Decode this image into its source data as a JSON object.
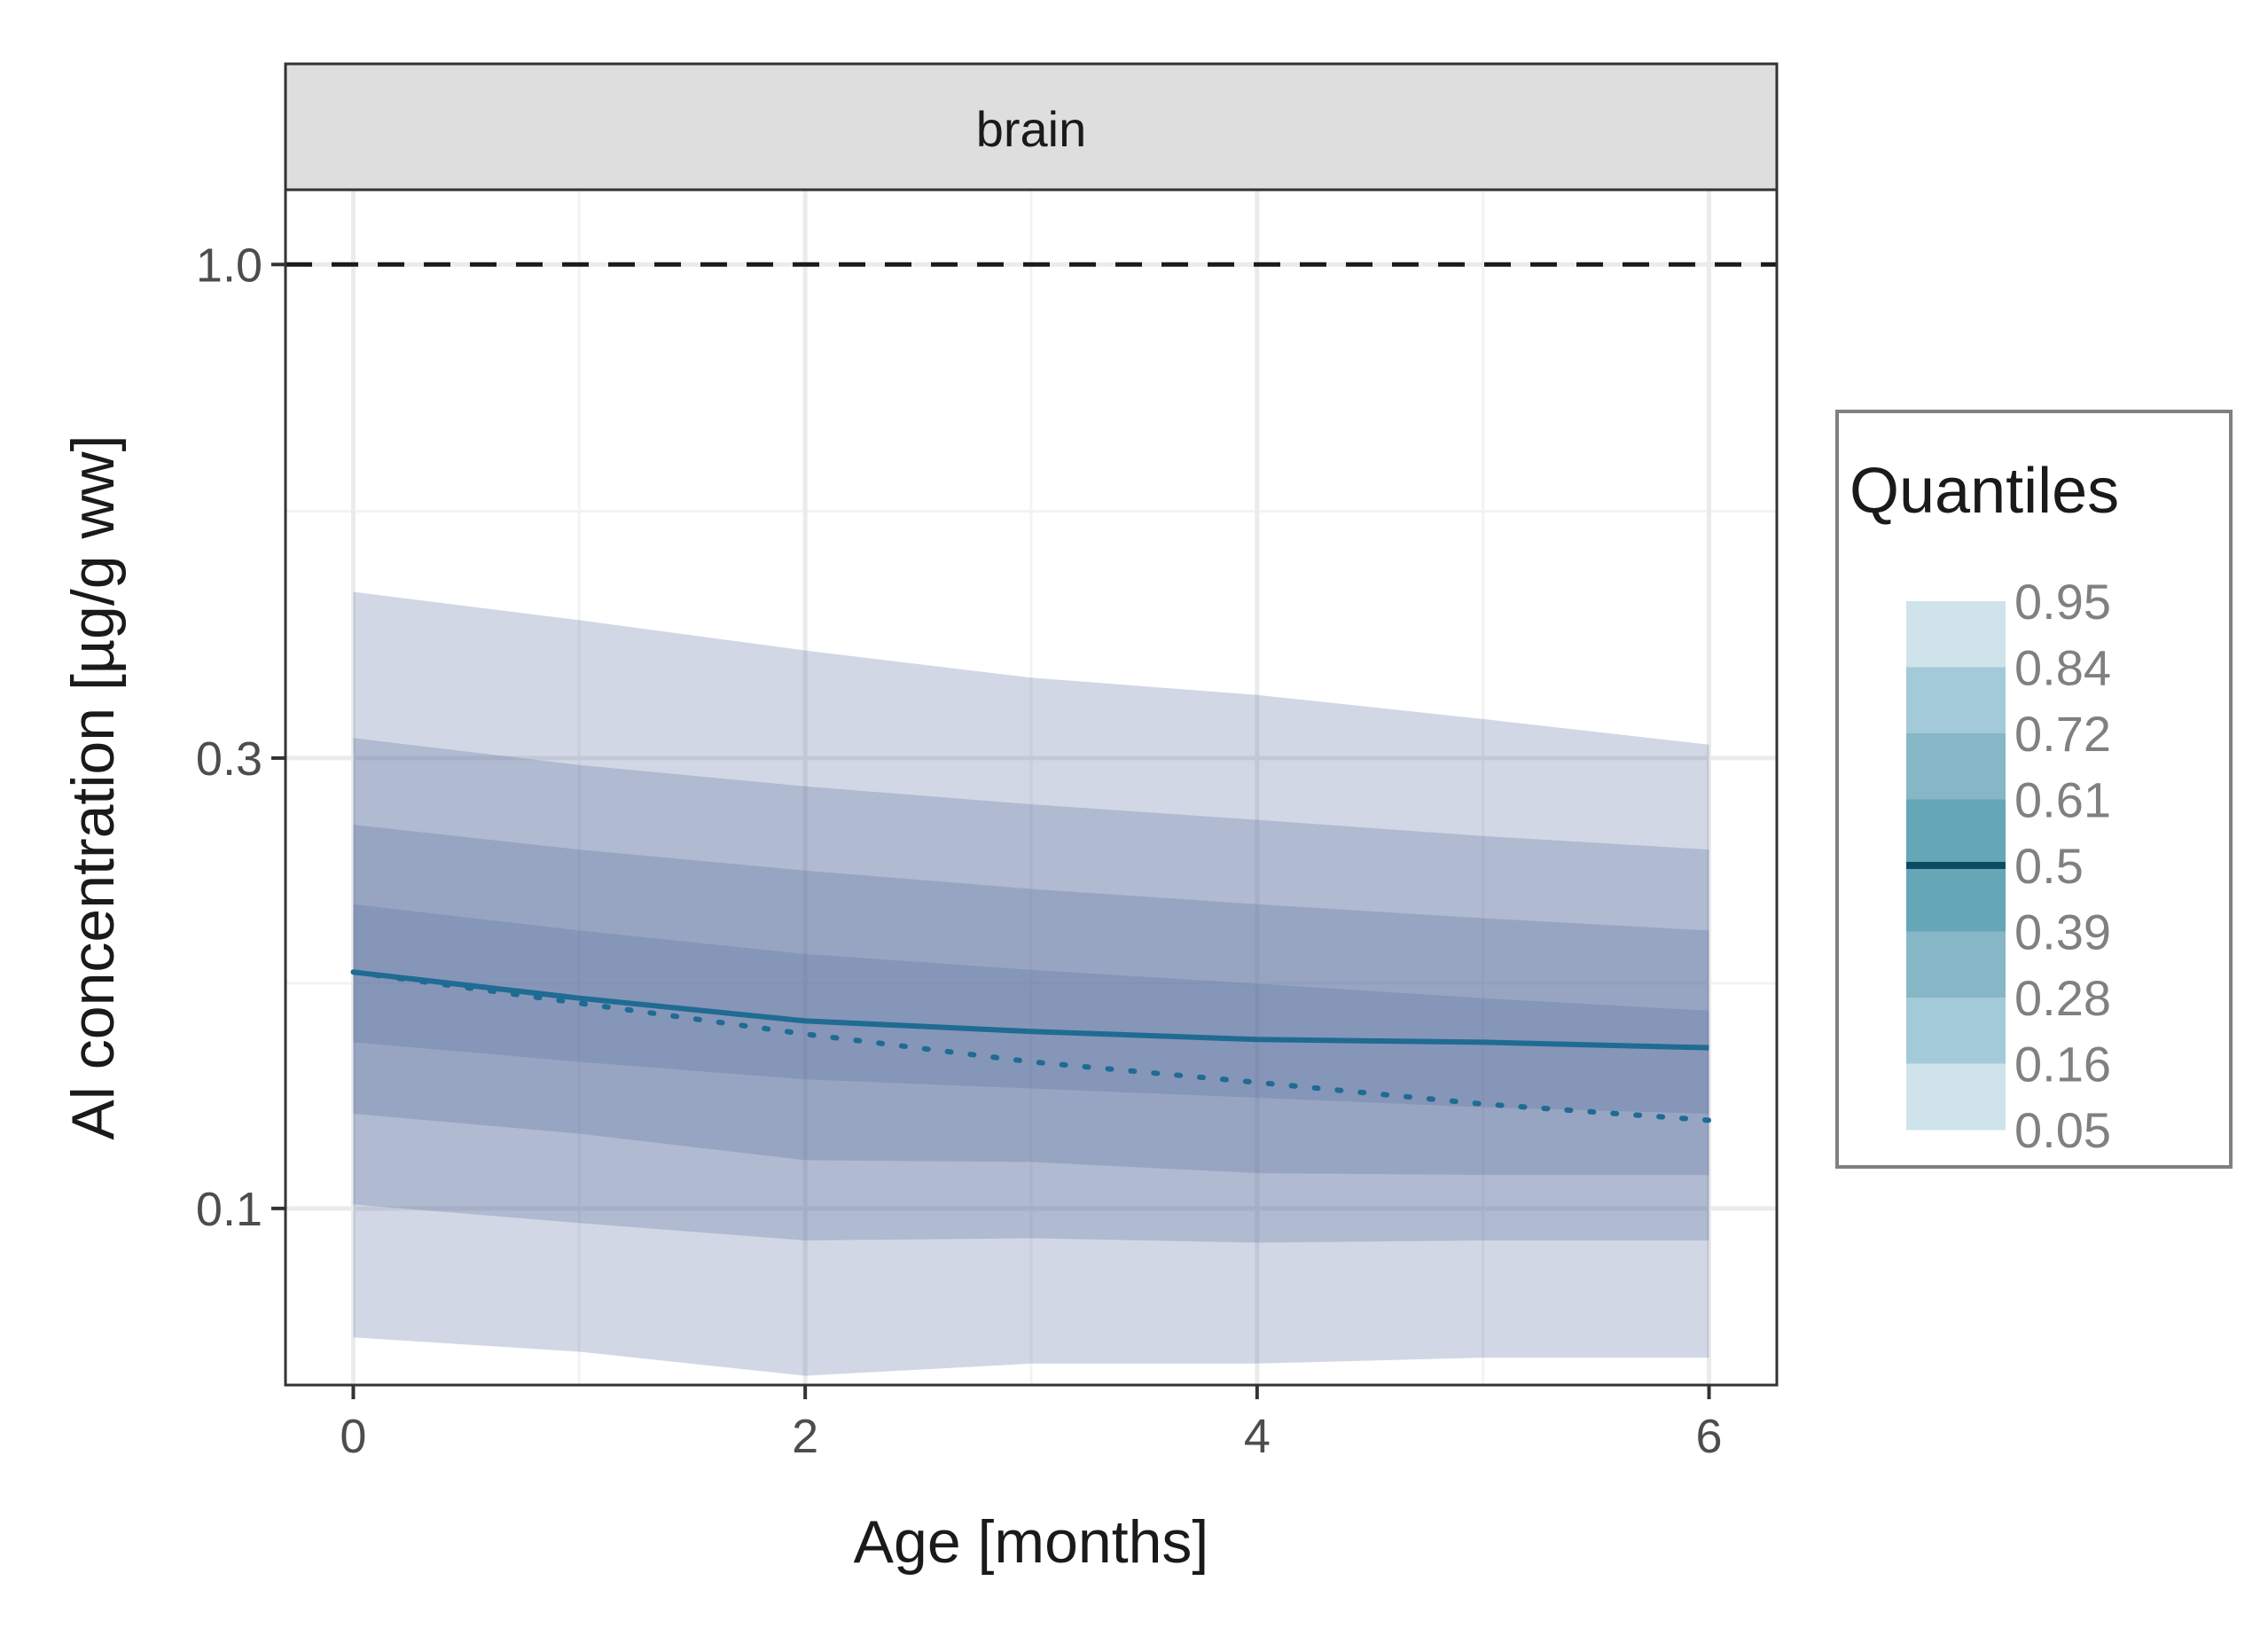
{
  "chart_data": {
    "type": "area",
    "facet": "brain",
    "xlabel": "Age [months]",
    "ylabel": "Al concentration [µg/g ww]",
    "y_scale": "log",
    "xlim": [
      -0.3,
      6.3
    ],
    "ylim": [
      0.065,
      1.2
    ],
    "x_ticks": [
      0,
      2,
      4,
      6
    ],
    "x_tick_labels": [
      "0",
      "2",
      "4",
      "6"
    ],
    "y_ticks": [
      0.1,
      0.3,
      1.0
    ],
    "y_tick_labels": [
      "0.1",
      "0.3",
      "1.0"
    ],
    "grid": true,
    "reference_line": {
      "y": 1.0,
      "style": "dashed",
      "color": "#1a1a1a"
    },
    "x": [
      0,
      1,
      2,
      3,
      4,
      5,
      6
    ],
    "bands": [
      {
        "lower_quantile": 0.05,
        "upper_quantile": 0.95,
        "lower": [
          0.073,
          0.0705,
          0.0665,
          0.0685,
          0.0685,
          0.0695,
          0.0695
        ],
        "upper": [
          0.45,
          0.42,
          0.39,
          0.365,
          0.35,
          0.33,
          0.31
        ]
      },
      {
        "lower_quantile": 0.16,
        "upper_quantile": 0.84,
        "lower": [
          0.101,
          0.0965,
          0.0925,
          0.093,
          0.092,
          0.0925,
          0.0925
        ],
        "upper": [
          0.315,
          0.295,
          0.28,
          0.268,
          0.258,
          0.248,
          0.24
        ]
      },
      {
        "lower_quantile": 0.28,
        "upper_quantile": 0.72,
        "lower": [
          0.126,
          0.12,
          0.1125,
          0.112,
          0.109,
          0.1085,
          0.1085
        ],
        "upper": [
          0.255,
          0.24,
          0.228,
          0.218,
          0.21,
          0.203,
          0.197
        ]
      },
      {
        "lower_quantile": 0.39,
        "upper_quantile": 0.61,
        "lower": [
          0.15,
          0.143,
          0.137,
          0.134,
          0.131,
          0.128,
          0.126
        ],
        "upper": [
          0.21,
          0.197,
          0.186,
          0.179,
          0.173,
          0.167,
          0.162
        ]
      }
    ],
    "median": {
      "quantile": 0.5,
      "x": [
        0,
        1,
        2,
        3,
        4,
        5,
        6
      ],
      "y": [
        0.178,
        0.167,
        0.158,
        0.154,
        0.151,
        0.15,
        0.148
      ]
    },
    "dotted_line": {
      "x": [
        0,
        1,
        2,
        3,
        4,
        5,
        6
      ],
      "y": [
        0.178,
        0.165,
        0.153,
        0.143,
        0.136,
        0.129,
        0.124
      ]
    },
    "band_fill_color": "#5b6f9e",
    "median_color": "#1f6b94",
    "legend": {
      "title": "Quantiles",
      "placement": "right",
      "labels": [
        "0.95",
        "0.84",
        "0.72",
        "0.61",
        "0.5",
        "0.39",
        "0.28",
        "0.16",
        "0.05"
      ],
      "swatch_colors": [
        "#cfe3ea",
        "#a3cad8",
        "#86b7c7",
        "#65a6b7",
        "#65a6b7",
        "#86b7c7",
        "#a3cad8",
        "#cfe3ea"
      ],
      "median_swatch_color": "#0d4b63"
    }
  }
}
